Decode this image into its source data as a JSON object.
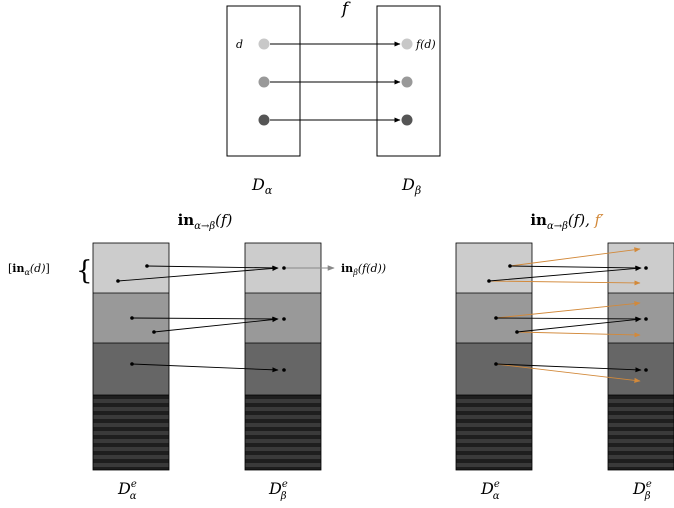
{
  "top_diagram": {
    "map_label": "f",
    "left_set_label": "D",
    "left_set_sub": "α",
    "right_set_label": "D",
    "right_set_sub": "β",
    "element_label": "d",
    "image_label": "f(d)",
    "dot_colors": [
      "#c8c8c8",
      "#999999",
      "#555555"
    ]
  },
  "bottom_left": {
    "title_bold": "in",
    "title_sub": "α→β",
    "title_arg": "(f)",
    "class_label_bold": "in",
    "class_label_sub": "α",
    "class_label_arg": "(d)",
    "output_bold": "in",
    "output_sub": "β",
    "output_arg": "(f(d))",
    "left_label": "D",
    "left_sub": "α",
    "left_sup": "e",
    "right_label": "D",
    "right_sub": "β",
    "right_sup": "e"
  },
  "bottom_right": {
    "title_bold": "in",
    "title_sub": "α→β",
    "title_arg": "(f), ",
    "title_extra": "f′",
    "left_label": "D",
    "left_sub": "α",
    "left_sup": "e",
    "right_label": "D",
    "right_sub": "β",
    "right_sup": "e"
  },
  "colors": {
    "band_light": "#cccccc",
    "band_mid": "#999999",
    "band_dark": "#666666",
    "stripe_dark": "#1e1e1e",
    "stripe_mid": "#3a3a3a",
    "orange": "#d2893a",
    "gray_arrow": "#888888"
  }
}
